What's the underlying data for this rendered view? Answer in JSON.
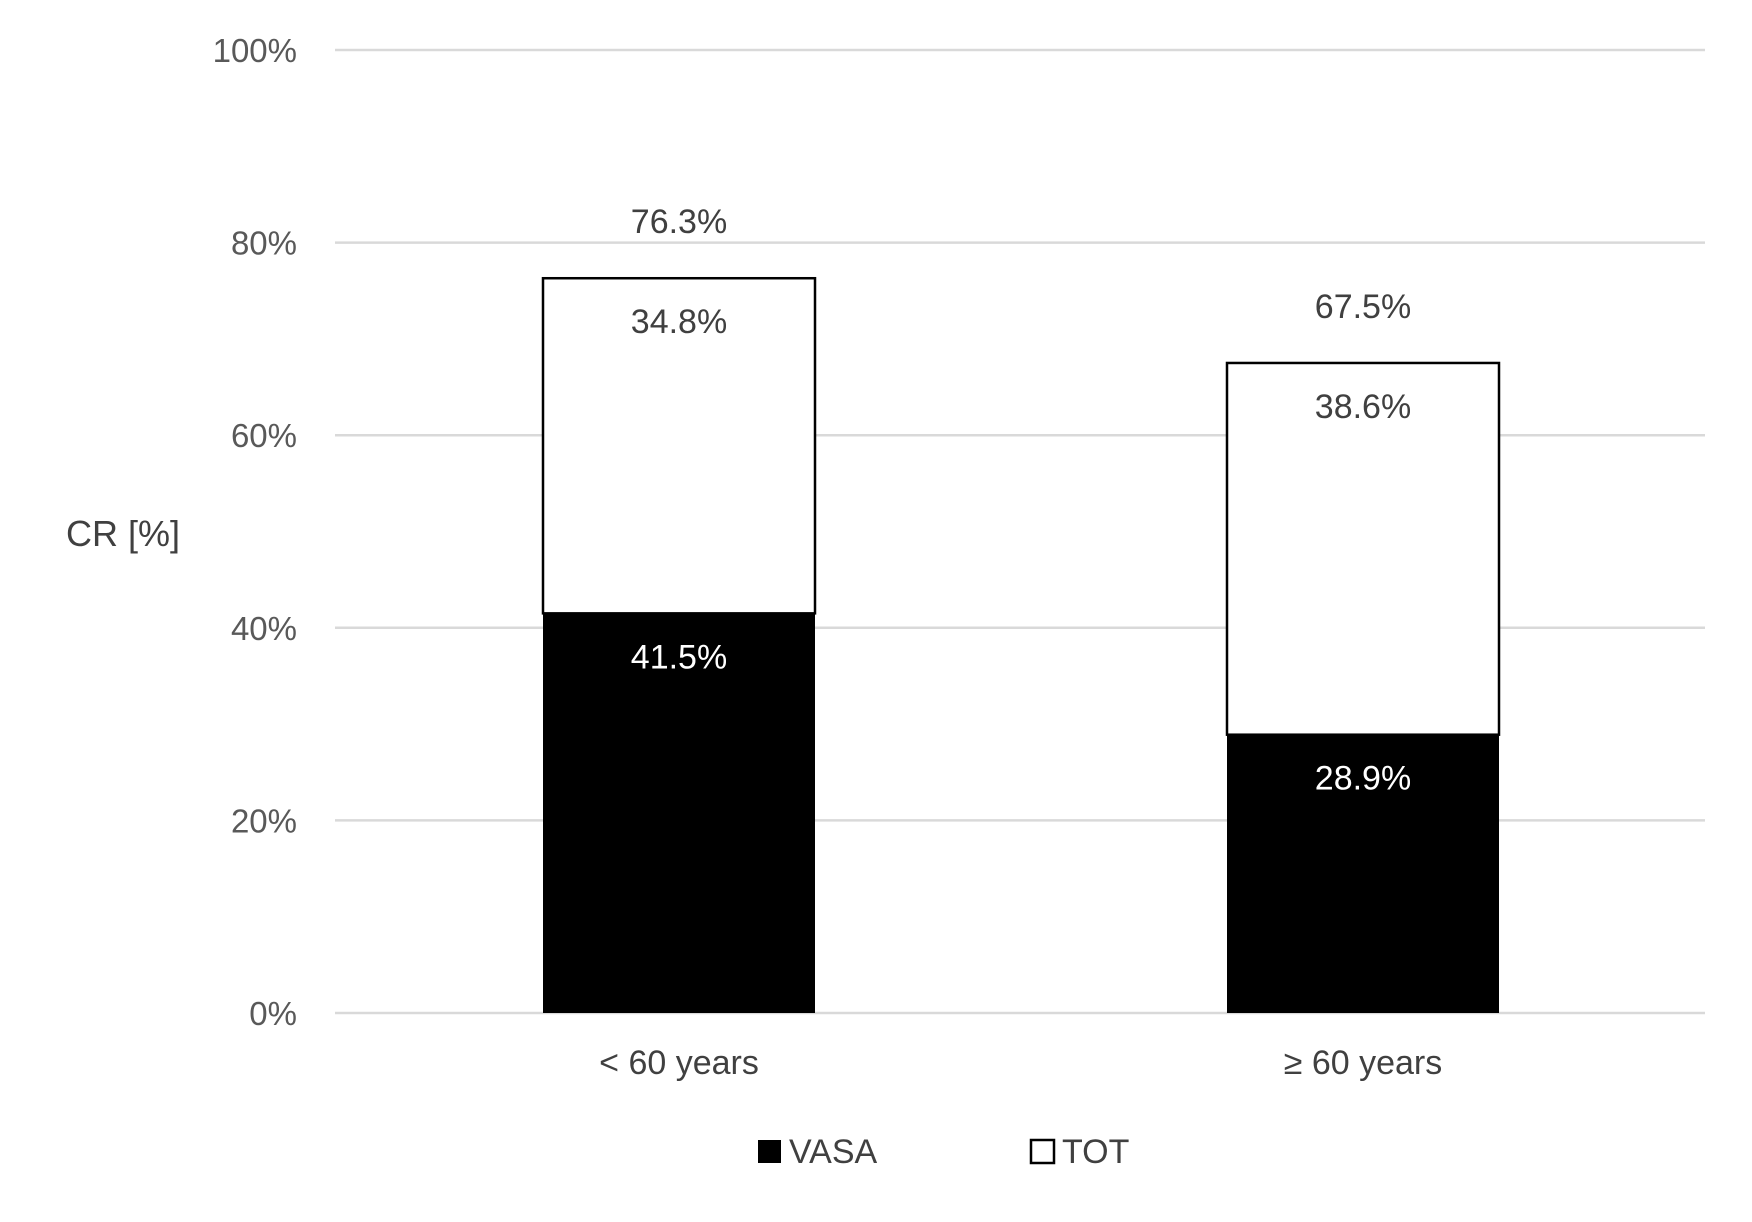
{
  "chart_data": {
    "type": "bar",
    "stacked": true,
    "categories": [
      "< 60 years",
      "≥ 60 years"
    ],
    "series": [
      {
        "name": "VASA",
        "values": [
          41.5,
          28.9
        ],
        "labels": [
          "41.5%",
          "28.9%"
        ],
        "color": "#000000",
        "label_color": "#ffffff"
      },
      {
        "name": "TOT",
        "values": [
          34.8,
          38.6
        ],
        "labels": [
          "34.8%",
          "38.6%"
        ],
        "color": "#ffffff",
        "label_color": "#404040"
      }
    ],
    "totals": [
      76.3,
      67.5
    ],
    "total_labels": [
      "76.3%",
      "67.5%"
    ],
    "ylabel": "CR [%]",
    "xlabel": "",
    "ylim": [
      0,
      100
    ],
    "yticks": [
      0,
      20,
      40,
      60,
      80,
      100
    ],
    "ytick_labels": [
      "0%",
      "20%",
      "40%",
      "60%",
      "80%",
      "100%"
    ],
    "grid": true,
    "legend_position": "bottom",
    "colors": {
      "grid": "#d9d9d9",
      "bar_outline": "#000000",
      "tick_text": "#595959",
      "label_text": "#404040"
    }
  }
}
